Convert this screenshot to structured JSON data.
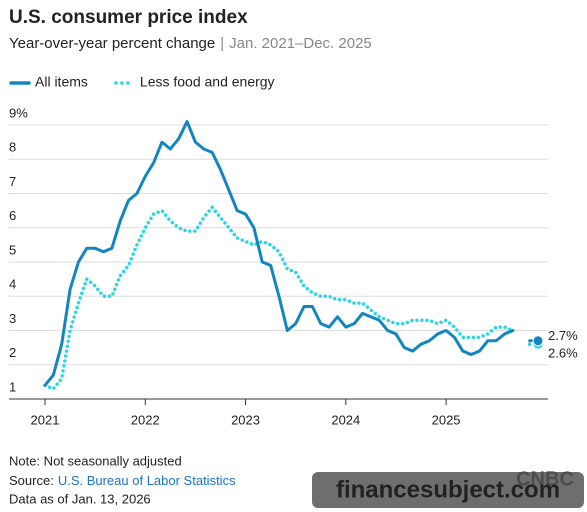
{
  "chart_data": {
    "type": "line",
    "title": "U.S. consumer price index",
    "subtitle": "Year-over-year percent change",
    "subtitle_range": "Jan. 2021–Dec. 2025",
    "xticks": [
      {
        "value": 0,
        "label": "2021"
      },
      {
        "value": 12,
        "label": "2022"
      },
      {
        "value": 24,
        "label": "2023"
      },
      {
        "value": 36,
        "label": "2024"
      },
      {
        "value": 48,
        "label": "2025"
      }
    ],
    "xlim": [
      0,
      59
    ],
    "ylim": [
      1,
      9
    ],
    "yticks": [
      1,
      2,
      3,
      4,
      5,
      6,
      7,
      8,
      {
        "value": 9,
        "label": "9%"
      }
    ],
    "grid": true,
    "legend": "top-left",
    "series": [
      {
        "name": "All items",
        "color": "#1386c2",
        "style": "solid",
        "values": [
          1.4,
          1.7,
          2.6,
          4.2,
          5.0,
          5.4,
          5.4,
          5.3,
          5.4,
          6.2,
          6.8,
          7.0,
          7.5,
          7.9,
          8.5,
          8.3,
          8.6,
          9.1,
          8.5,
          8.3,
          8.2,
          7.7,
          7.1,
          6.5,
          6.4,
          6.0,
          5.0,
          4.9,
          4.0,
          3.0,
          3.2,
          3.7,
          3.7,
          3.2,
          3.1,
          3.4,
          3.1,
          3.2,
          3.5,
          3.4,
          3.3,
          3.0,
          2.9,
          2.5,
          2.4,
          2.6,
          2.7,
          2.9,
          3.0,
          2.8,
          2.4,
          2.3,
          2.4,
          2.7,
          2.7,
          2.9,
          3.0,
          null,
          2.7,
          2.7
        ],
        "value_labels": [
          null,
          null,
          null,
          null,
          null,
          null,
          null,
          null,
          null,
          null,
          null,
          null,
          null,
          null,
          null,
          null,
          null,
          null,
          null,
          null,
          null,
          null,
          null,
          null,
          null,
          null,
          null,
          null,
          null,
          null,
          null,
          null,
          null,
          null,
          null,
          null,
          null,
          null,
          null,
          null,
          null,
          null,
          null,
          null,
          null,
          null,
          null,
          null,
          null,
          null,
          null,
          null,
          null,
          null,
          null,
          null,
          null,
          null,
          null,
          "2.7%"
        ]
      },
      {
        "name": "Less food and energy",
        "color": "#2ad6e6",
        "style": "dotted",
        "values": [
          1.4,
          1.3,
          1.6,
          3.0,
          3.8,
          4.5,
          4.3,
          4.0,
          4.0,
          4.6,
          4.9,
          5.5,
          6.0,
          6.4,
          6.5,
          6.2,
          6.0,
          5.9,
          5.9,
          6.3,
          6.6,
          6.3,
          6.0,
          5.7,
          5.6,
          5.5,
          5.6,
          5.5,
          5.3,
          4.8,
          4.7,
          4.3,
          4.1,
          4.0,
          4.0,
          3.9,
          3.9,
          3.8,
          3.8,
          3.6,
          3.4,
          3.3,
          3.2,
          3.2,
          3.3,
          3.3,
          3.3,
          3.2,
          3.3,
          3.1,
          2.8,
          2.8,
          2.8,
          2.9,
          3.1,
          3.1,
          3.0,
          null,
          2.6,
          2.6
        ],
        "value_labels": [
          null,
          null,
          null,
          null,
          null,
          null,
          null,
          null,
          null,
          null,
          null,
          null,
          null,
          null,
          null,
          null,
          null,
          null,
          null,
          null,
          null,
          null,
          null,
          null,
          null,
          null,
          null,
          null,
          null,
          null,
          null,
          null,
          null,
          null,
          null,
          null,
          null,
          null,
          null,
          null,
          null,
          null,
          null,
          null,
          null,
          null,
          null,
          null,
          null,
          null,
          null,
          null,
          null,
          null,
          null,
          null,
          null,
          null,
          null,
          "2.6%"
        ]
      }
    ],
    "note": "Note: Not seasonally adjusted",
    "source_prefix": "Source:",
    "source": "U.S. Bureau of Labor Statistics",
    "data_as_of": "Data as of Jan. 13, 2026",
    "logo": "CNBC",
    "watermark": "financesubject.com"
  }
}
